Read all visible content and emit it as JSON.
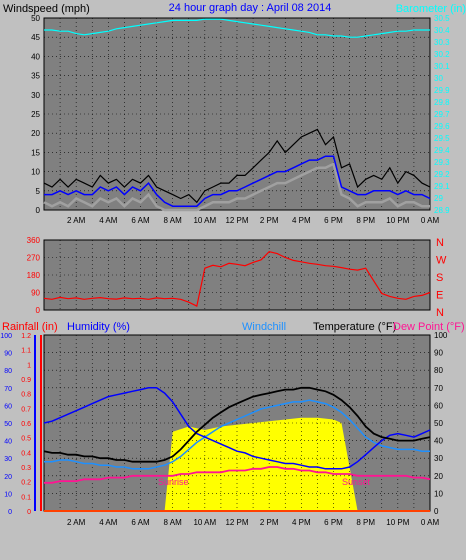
{
  "header": {
    "windspeed_label": "Windspeed (mph)",
    "graph_title": "24 hour graph day : April 08 2014",
    "barometer_label": "Barometer (in)"
  },
  "section3_header": {
    "rainfall_label": "Rainfall (in)",
    "humidity_label": "Humidity (%)",
    "windchill_label": "Windchill",
    "temperature_label": "Temperature (°F)",
    "dewpoint_label": "Dew Point (°F)"
  },
  "colors": {
    "background": "#c0c0c0",
    "plot_bg": "#808080",
    "grid": "#000000",
    "wind_gust": "#000000",
    "wind_avg": "#0000ff",
    "wind_speed": "#a0a0a0",
    "barometer": "#00ffff",
    "direction": "#ff0000",
    "humidity": "#0000ff",
    "windchill": "#1e90ff",
    "temperature": "#000000",
    "dewpoint": "#ff1493",
    "solar": "#ffff00",
    "rain": "#ff0000",
    "title": "#0000ff"
  },
  "chart_data": [
    {
      "id": "wind",
      "type": "line",
      "x_tick_labels": [
        "2 AM",
        "4 AM",
        "6 AM",
        "8 AM",
        "10 AM",
        "12 PM",
        "2 PM",
        "4 PM",
        "6 PM",
        "8 PM",
        "10 PM",
        "0 AM"
      ],
      "y_left": {
        "label": "Windspeed (mph)",
        "range": [
          0,
          50
        ],
        "ticks": [
          "0",
          "5",
          "10",
          "15",
          "20",
          "25",
          "30",
          "35",
          "40",
          "45",
          "50"
        ]
      },
      "y_right": {
        "label": "Barometer (in)",
        "range": [
          28.9,
          30.5
        ],
        "ticks": [
          "28.9",
          "29",
          "29.1",
          "29.2",
          "29.3",
          "29.4",
          "29.5",
          "29.6",
          "29.7",
          "29.8",
          "29.9",
          "30",
          "30.1",
          "30.2",
          "30.3",
          "30.4",
          "30.5"
        ]
      },
      "x_hours": [
        0,
        0.5,
        1,
        1.5,
        2,
        2.5,
        3,
        3.5,
        4,
        4.5,
        5,
        5.5,
        6,
        6.5,
        7,
        7.5,
        8,
        8.5,
        9,
        9.5,
        10,
        10.5,
        11,
        11.5,
        12,
        12.5,
        13,
        13.5,
        14,
        14.5,
        15,
        15.5,
        16,
        16.5,
        17,
        17.5,
        18,
        18.5,
        19,
        19.5,
        20,
        20.5,
        21,
        21.5,
        22,
        22.5,
        23,
        23.5,
        24
      ],
      "series": [
        {
          "key": "gust",
          "values": [
            7,
            6,
            8,
            6,
            8,
            7,
            6,
            9,
            7,
            8,
            6,
            8,
            7,
            9,
            6,
            5,
            4,
            3,
            4,
            2,
            5,
            6,
            7,
            7,
            9,
            9,
            11,
            13,
            15,
            18,
            15,
            17,
            19,
            20,
            21,
            17,
            19,
            11,
            12,
            6,
            8,
            9,
            8,
            11,
            7,
            10,
            9,
            7,
            6
          ]
        },
        {
          "key": "avg",
          "values": [
            4,
            4,
            5,
            4,
            5,
            4,
            4,
            6,
            5,
            6,
            4,
            6,
            5,
            7,
            4,
            2,
            1,
            1,
            1,
            1,
            3,
            4,
            4,
            5,
            5,
            6,
            7,
            8,
            9,
            10,
            10,
            11,
            12,
            13,
            13,
            14,
            14,
            6,
            5,
            4,
            4,
            5,
            5,
            5,
            4,
            5,
            4,
            4,
            3
          ]
        },
        {
          "key": "speed",
          "values": [
            2,
            1,
            2,
            1,
            3,
            2,
            1,
            3,
            2,
            3,
            1,
            3,
            2,
            4,
            1,
            0,
            0,
            0,
            0,
            0,
            1,
            2,
            2,
            2,
            3,
            3,
            4,
            5,
            6,
            7,
            7,
            8,
            9,
            10,
            11,
            11,
            12,
            4,
            3,
            1,
            2,
            2,
            2,
            3,
            1,
            2,
            2,
            1,
            1
          ]
        },
        {
          "key": "barometer",
          "values": [
            30.4,
            30.4,
            30.39,
            30.39,
            30.37,
            30.36,
            30.37,
            30.38,
            30.39,
            30.41,
            30.42,
            30.43,
            30.44,
            30.45,
            30.46,
            30.47,
            30.48,
            30.48,
            30.48,
            30.48,
            30.49,
            30.49,
            30.49,
            30.48,
            30.47,
            30.46,
            30.45,
            30.44,
            30.43,
            30.42,
            30.41,
            30.4,
            30.39,
            30.38,
            30.36,
            30.36,
            30.35,
            30.35,
            30.34,
            30.34,
            30.35,
            30.36,
            30.37,
            30.38,
            30.39,
            30.39,
            30.4,
            30.4,
            30.4
          ]
        }
      ]
    },
    {
      "id": "direction",
      "type": "line",
      "y_left": {
        "ticks": [
          "360",
          "270",
          "180",
          "90",
          "0"
        ],
        "range": [
          0,
          360
        ]
      },
      "y_right_labels": [
        "N",
        "W",
        "S",
        "E",
        "N"
      ],
      "x_hours": [
        0,
        0.5,
        1,
        1.5,
        2,
        2.5,
        3,
        3.5,
        4,
        4.5,
        5,
        5.5,
        6,
        6.5,
        7,
        7.5,
        8,
        8.5,
        9,
        9.5,
        10,
        10.5,
        11,
        11.5,
        12,
        12.5,
        13,
        13.5,
        14,
        14.5,
        15,
        15.5,
        16,
        16.5,
        17,
        17.5,
        18,
        18.5,
        19,
        19.5,
        20,
        20.5,
        21,
        21.5,
        22,
        22.5,
        23,
        23.5,
        24
      ],
      "series": [
        {
          "key": "direction",
          "values": [
            60,
            55,
            65,
            58,
            62,
            55,
            60,
            64,
            58,
            56,
            62,
            58,
            60,
            55,
            62,
            58,
            60,
            55,
            40,
            20,
            215,
            230,
            222,
            240,
            235,
            228,
            245,
            258,
            300,
            290,
            270,
            255,
            248,
            240,
            235,
            228,
            225,
            218,
            210,
            205,
            215,
            150,
            85,
            70,
            60,
            55,
            70,
            75,
            90
          ]
        }
      ]
    },
    {
      "id": "temperature",
      "type": "line",
      "y_left": {
        "label": "Rainfall (in)",
        "range": [
          0,
          1.2
        ],
        "ticks": [
          "0",
          "0.1",
          "0.2",
          "0.3",
          "0.4",
          "0.5",
          "0.6",
          "0.7",
          "0.8",
          "0.9",
          "1",
          "1.1",
          "1.2"
        ]
      },
      "y_left2": {
        "label": "Humidity (%)",
        "range": [
          0,
          100
        ],
        "ticks": [
          "0",
          "10",
          "20",
          "30",
          "40",
          "50",
          "60",
          "70",
          "80",
          "90",
          "100"
        ]
      },
      "y_right": {
        "label": "Temperature (°F)",
        "range": [
          0,
          100
        ],
        "ticks": [
          "0",
          "10",
          "20",
          "30",
          "40",
          "50",
          "60",
          "70",
          "80",
          "90",
          "100"
        ]
      },
      "x_tick_labels": [
        "2 AM",
        "4 AM",
        "6 AM",
        "8 AM",
        "10 AM",
        "12 PM",
        "2 PM",
        "4 PM",
        "6 PM",
        "8 PM",
        "10 PM",
        "0 AM"
      ],
      "annotations": [
        "Sunrise",
        "Sunset"
      ],
      "x_hours": [
        0,
        0.5,
        1,
        1.5,
        2,
        2.5,
        3,
        3.5,
        4,
        4.5,
        5,
        5.5,
        6,
        6.5,
        7,
        7.5,
        8,
        8.5,
        9,
        9.5,
        10,
        10.5,
        11,
        11.5,
        12,
        12.5,
        13,
        13.5,
        14,
        14.5,
        15,
        15.5,
        16,
        16.5,
        17,
        17.5,
        18,
        18.5,
        19,
        19.5,
        20,
        20.5,
        21,
        21.5,
        22,
        22.5,
        23,
        23.5,
        24
      ],
      "series": [
        {
          "key": "humidity",
          "values": [
            50,
            51,
            53,
            55,
            57,
            59,
            61,
            63,
            65,
            66,
            67,
            68,
            69,
            70,
            70,
            67,
            62,
            55,
            48,
            44,
            42,
            40,
            38,
            36,
            34,
            33,
            31,
            30,
            29,
            28,
            27,
            27,
            26,
            25,
            25,
            24,
            24,
            24,
            25,
            28,
            32,
            36,
            40,
            43,
            44,
            43,
            42,
            44,
            46
          ]
        },
        {
          "key": "windchill",
          "values": [
            28,
            28,
            29,
            29,
            28,
            27,
            27,
            26,
            26,
            25,
            25,
            24,
            24,
            24,
            25,
            26,
            28,
            31,
            35,
            39,
            42,
            45,
            48,
            50,
            52,
            54,
            56,
            58,
            59,
            60,
            61,
            62,
            62,
            63,
            62,
            61,
            59,
            56,
            52,
            47,
            42,
            39,
            37,
            36,
            35,
            35,
            35,
            34,
            34
          ]
        },
        {
          "key": "temperature",
          "values": [
            34,
            33,
            33,
            32,
            32,
            31,
            31,
            30,
            30,
            29,
            29,
            28,
            28,
            28,
            28,
            29,
            31,
            35,
            40,
            45,
            49,
            53,
            56,
            59,
            61,
            63,
            65,
            66,
            67,
            68,
            69,
            69,
            70,
            70,
            69,
            68,
            66,
            63,
            59,
            54,
            48,
            44,
            42,
            41,
            40,
            40,
            40,
            41,
            42
          ]
        },
        {
          "key": "dewpoint",
          "values": [
            16,
            16,
            17,
            17,
            17,
            18,
            18,
            18,
            19,
            19,
            19,
            20,
            20,
            20,
            20,
            20,
            20,
            21,
            21,
            22,
            22,
            22,
            22,
            23,
            23,
            23,
            24,
            24,
            25,
            25,
            24,
            24,
            23,
            23,
            22,
            22,
            21,
            21,
            21,
            20,
            20,
            20,
            20,
            20,
            20,
            20,
            19,
            19,
            18
          ]
        },
        {
          "key": "solar",
          "values": [
            0,
            0,
            0,
            0,
            0,
            0,
            0,
            0,
            0,
            0,
            0,
            0,
            0,
            0,
            0,
            0,
            0,
            0,
            0,
            0,
            0,
            0,
            0,
            0,
            0,
            0,
            0,
            0,
            0,
            0,
            0,
            0,
            0,
            0,
            0,
            0,
            0,
            0,
            0,
            0,
            0,
            0,
            0,
            0,
            0,
            0,
            0,
            0,
            0
          ]
        },
        {
          "key": "rain",
          "values": [
            0,
            0,
            0,
            0,
            0,
            0,
            0,
            0,
            0,
            0,
            0,
            0,
            0,
            0,
            0,
            0,
            0,
            0,
            0,
            0,
            0,
            0,
            0,
            0,
            0,
            0,
            0,
            0,
            0,
            0,
            0,
            0,
            0,
            0,
            0,
            0,
            0,
            0,
            0,
            0,
            0,
            0,
            0,
            0,
            0,
            0,
            0,
            0,
            0
          ]
        }
      ],
      "solar_curve": {
        "hours": [
          7.5,
          8,
          9,
          10,
          11,
          12,
          13,
          14,
          15,
          16,
          17,
          18,
          18.5,
          19.5
        ],
        "values": [
          0,
          45,
          48,
          46,
          48,
          49,
          50,
          51,
          52,
          53,
          53,
          52,
          50,
          0
        ]
      }
    }
  ]
}
